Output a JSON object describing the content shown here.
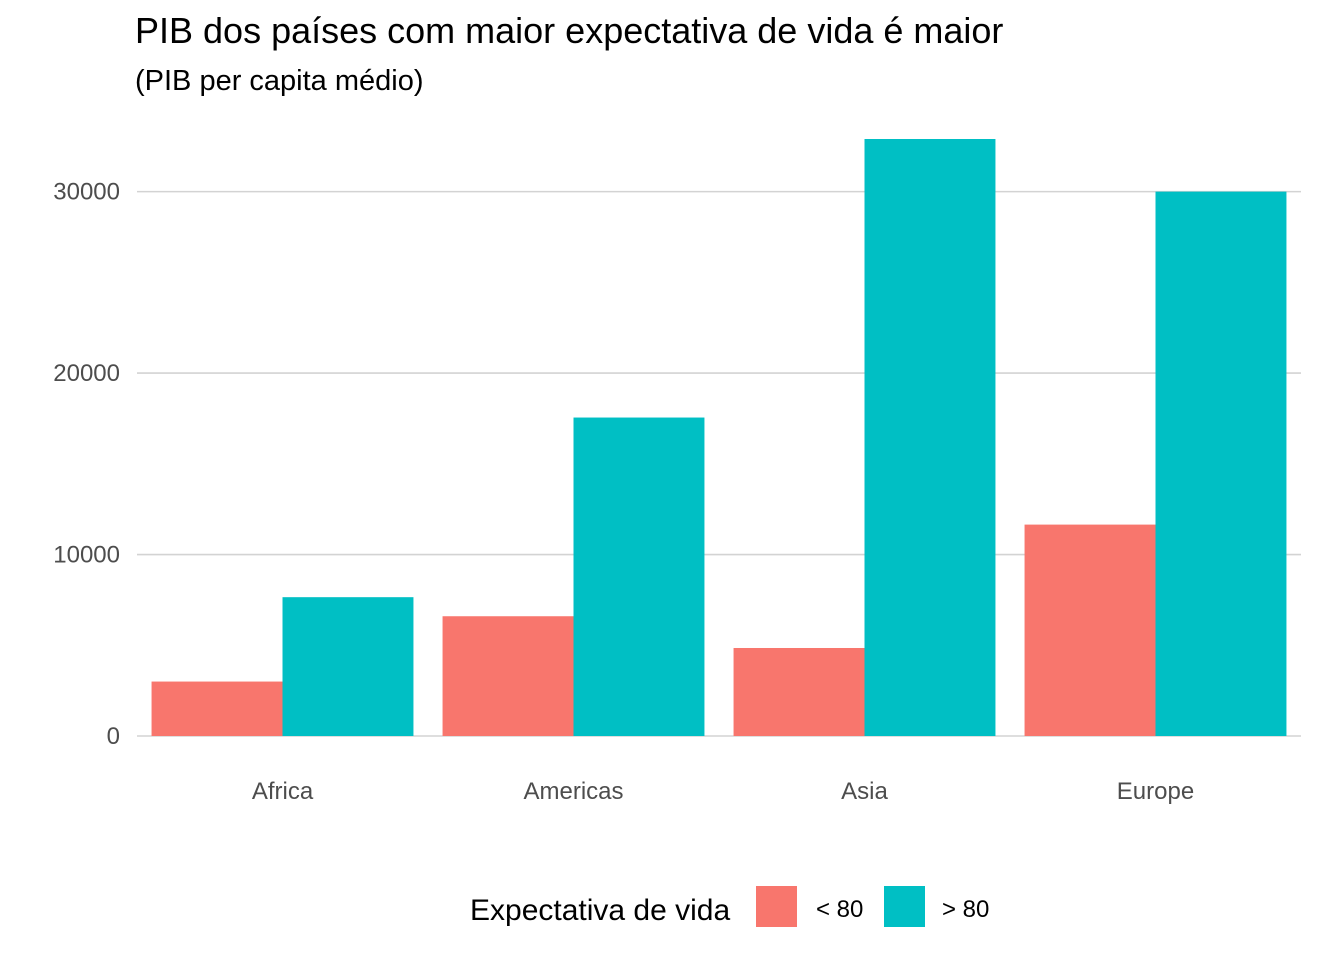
{
  "chart_data": {
    "type": "bar",
    "title": "PIB dos países com maior expectativa de vida é maior",
    "subtitle": "(PIB per capita médio)",
    "xlabel": "",
    "ylabel": "",
    "categories": [
      "Africa",
      "Americas",
      "Asia",
      "Europe"
    ],
    "series": [
      {
        "name": "< 80",
        "color": "#F8766D",
        "values": [
          3000,
          6600,
          4850,
          11650
        ]
      },
      {
        "name": "> 80",
        "color": "#00BFC4",
        "values": [
          7650,
          17550,
          32900,
          30000
        ]
      }
    ],
    "ylim": [
      0,
      33000
    ],
    "yticks": [
      0,
      10000,
      20000,
      30000
    ],
    "ytick_labels": [
      "0",
      "10000",
      "20000",
      "30000"
    ],
    "grid": true,
    "legend": {
      "title": "Expectativa de vida",
      "position": "bottom"
    }
  }
}
